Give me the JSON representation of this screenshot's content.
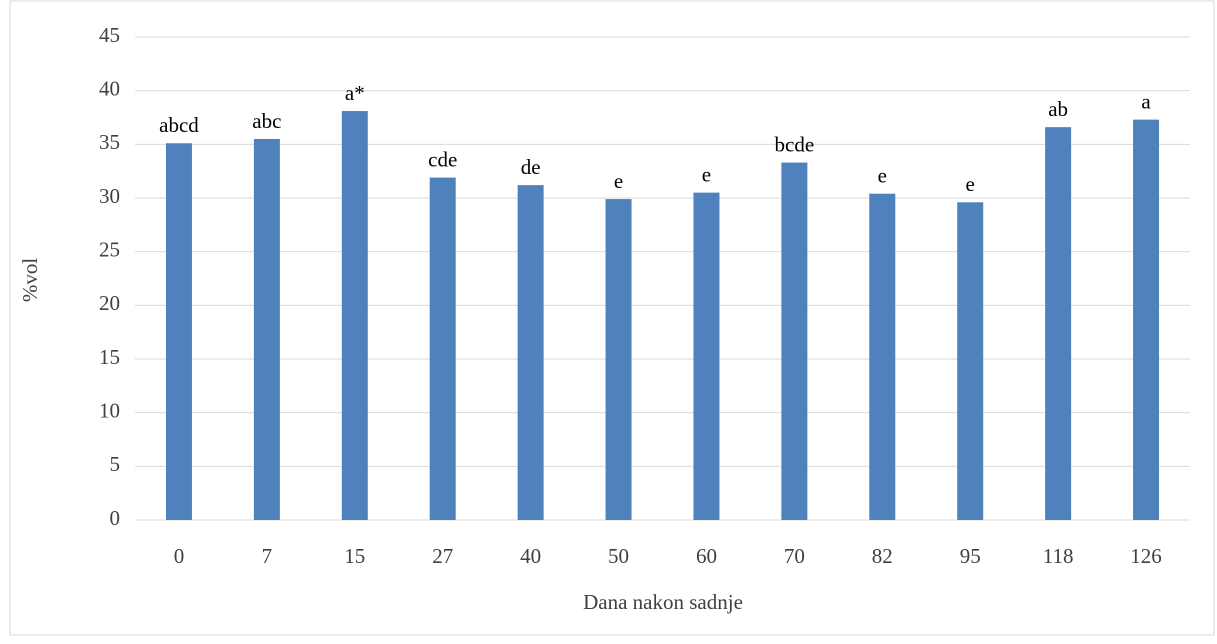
{
  "chart_data": {
    "type": "bar",
    "categories": [
      "0",
      "7",
      "15",
      "27",
      "40",
      "50",
      "60",
      "70",
      "82",
      "95",
      "118",
      "126"
    ],
    "values": [
      35.1,
      35.5,
      38.1,
      31.9,
      31.2,
      29.9,
      30.5,
      33.3,
      30.4,
      29.6,
      36.6,
      37.3
    ],
    "annotations": [
      "abcd",
      "abc",
      "a*",
      "cde",
      "de",
      "e",
      "e",
      "bcde",
      "e",
      "e",
      "ab",
      "a"
    ],
    "color": "#4f81bd",
    "x_label": "Dana nakon sadnje",
    "y_label": "%vol",
    "ylim": [
      0,
      45
    ],
    "yticks": [
      0,
      5,
      10,
      15,
      20,
      25,
      30,
      35,
      40,
      45
    ],
    "grid": true
  }
}
